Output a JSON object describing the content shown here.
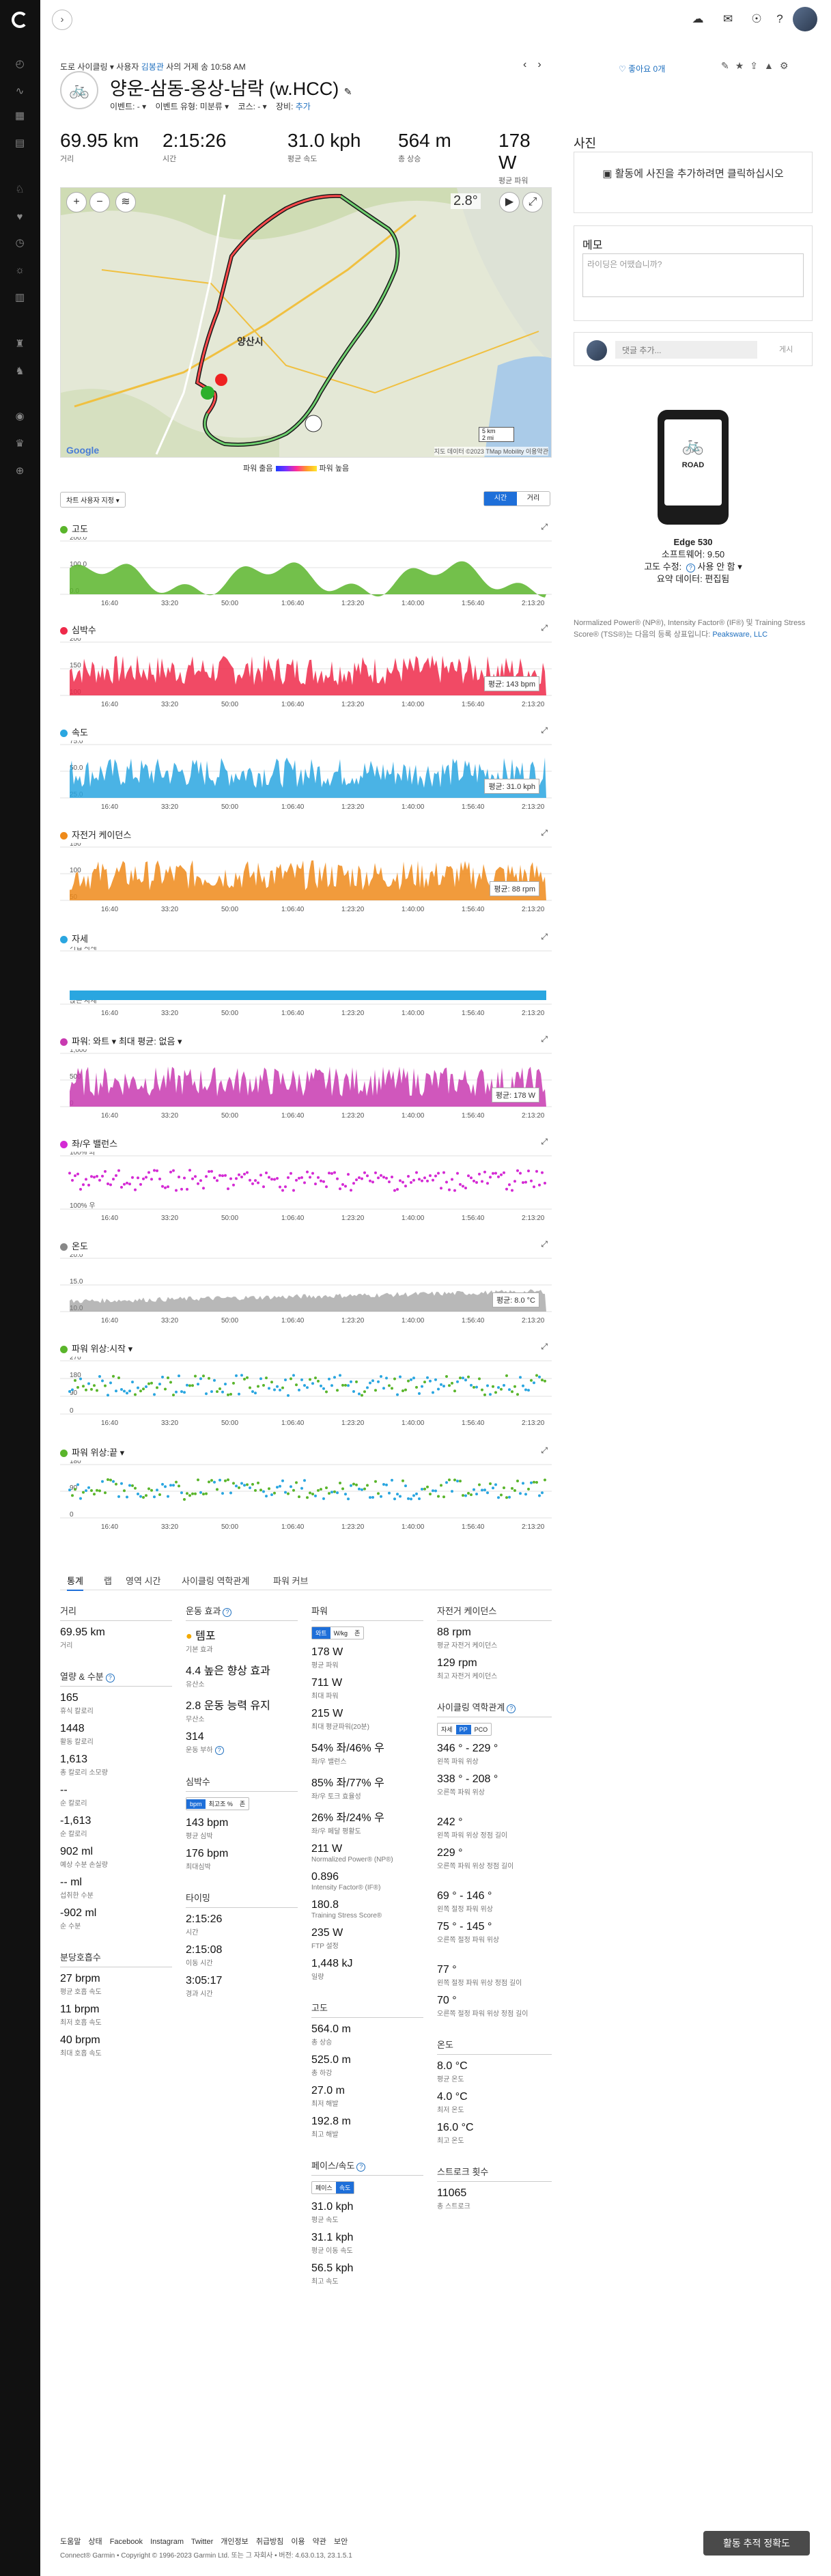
{
  "crumb": {
    "prefix": "도로 사이클링",
    "user_label": "사용자",
    "user": "김봉관",
    "suffix": "사의 거제 송 10:58 AM"
  },
  "title": "양운-삼동-옹상-남락 (w.HCC)",
  "meta": {
    "event": "이벤트: -",
    "event_type": "이벤트 유형: 미분류",
    "course": "코스: -",
    "gear": "장비:",
    "add": "추가"
  },
  "likes": "좋아요 0개",
  "stats": [
    {
      "v": "69.95 km",
      "l": "거리"
    },
    {
      "v": "2:15:26",
      "l": "시간"
    },
    {
      "v": "31.0 kph",
      "l": "평균 속도"
    },
    {
      "v": "564 m",
      "l": "총 상승"
    },
    {
      "v": "178 W",
      "l": "평균 파워"
    }
  ],
  "map": {
    "temp": "2.8°",
    "place": "양산시",
    "attrib": "지도 데이터 ©2023 TMap Mobility  이용약관",
    "scale1": "5 km",
    "scale2": "2 mi",
    "google": "Google"
  },
  "power_legend": {
    "low": "파워 출음",
    "high": "파워 높음"
  },
  "chart_control": "차트 사용자 지정 ▾",
  "toggle": {
    "time": "시간",
    "distance": "거리"
  },
  "x_ticks": [
    "16:40",
    "33:20",
    "50:00",
    "1:06:40",
    "1:23:20",
    "1:40:00",
    "1:56:40",
    "2:13:20"
  ],
  "charts": [
    {
      "title": "고도",
      "color": "#5ab52b",
      "y": [
        "200.0",
        "100.0",
        "0.0"
      ],
      "avg": ""
    },
    {
      "title": "심박수",
      "color": "#ee2a4a",
      "y": [
        "200",
        "150",
        "100"
      ],
      "avg": "평균: 143 bpm"
    },
    {
      "title": "속도",
      "color": "#2aa6e0",
      "y": [
        "75.0",
        "50.0",
        "25.0"
      ],
      "avg": "평균: 31.0 kph"
    },
    {
      "title": "자전거 케이던스",
      "color": "#ee8a1a",
      "y": [
        "150",
        "100",
        "50"
      ],
      "avg": "평균: 88 rpm"
    },
    {
      "title": "자세",
      "color": "#2aa6e0",
      "y": [
        "기립 자세",
        "앉은 자세"
      ],
      "avg": ""
    },
    {
      "title": "파워: 와트 ▾  최대 평균: 없음 ▾",
      "color": "#c83ab0",
      "y": [
        "1,000",
        "500",
        "0"
      ],
      "avg": "평균: 178 W"
    },
    {
      "title": "좌/우 밸런스",
      "color": "#d42ad4",
      "y": [
        "100% 좌",
        "100% 우"
      ],
      "avg": ""
    },
    {
      "title": "온도",
      "color": "#888888",
      "y": [
        "20.0",
        "15.0",
        "10.0"
      ],
      "avg": "평균: 8.0 °C"
    },
    {
      "title": "파워 위상:시작 ▾",
      "color": "#5ab52b",
      "y": [
        "270",
        "180",
        "90",
        "0"
      ],
      "avg": ""
    },
    {
      "title": "파워 위상:끝 ▾",
      "color": "#5ab52b",
      "y": [
        "180",
        "90",
        "0"
      ],
      "avg": ""
    }
  ],
  "tabs": [
    "통계",
    "랩",
    "영역 시간",
    "사이클링 역학관계",
    "파워 커브"
  ],
  "col1": {
    "dist_head": "거리",
    "dist": [
      {
        "v": "69.95 km",
        "l": "거리"
      }
    ],
    "cal_head": "열량 & 수분",
    "cal": [
      {
        "v": "165",
        "l": "휴식 칼로리"
      },
      {
        "v": "1448",
        "l": "활동 칼로리"
      },
      {
        "v": "1,613",
        "l": "총 칼로리 소모량"
      },
      {
        "v": "--",
        "l": "순 칼로리"
      },
      {
        "v": "-1,613",
        "l": "순 칼로리"
      },
      {
        "v": "902 ml",
        "l": "예상 수분 손실량"
      },
      {
        "v": "-- ml",
        "l": "섭취한 수분"
      },
      {
        "v": "-902 ml",
        "l": "순 수분"
      }
    ],
    "resp_head": "분당호흡수",
    "resp": [
      {
        "v": "27 brpm",
        "l": "평균 호흡 속도"
      },
      {
        "v": "11 brpm",
        "l": "최저 호흡 속도"
      },
      {
        "v": "40 brpm",
        "l": "최대 호흡 속도"
      }
    ]
  },
  "col2": {
    "eff_head": "운동 효과",
    "eff": [
      {
        "v": "템포",
        "l": "기본 효과"
      },
      {
        "v": "4.4 높은 향상 효과",
        "l": "유산소"
      },
      {
        "v": "2.8 운동 능력 유지",
        "l": "무산소"
      },
      {
        "v": "314",
        "l": "운동 부하"
      }
    ],
    "hr_head": "심박수",
    "hr_seg": [
      "bpm",
      "최고조 %",
      "존"
    ],
    "hr": [
      {
        "v": "143 bpm",
        "l": "평균 심박"
      },
      {
        "v": "176 bpm",
        "l": "최대심박"
      }
    ],
    "time_head": "타이밍",
    "time": [
      {
        "v": "2:15:26",
        "l": "시간"
      },
      {
        "v": "2:15:08",
        "l": "이동 시간"
      },
      {
        "v": "3:05:17",
        "l": "경과 시간"
      }
    ]
  },
  "col3": {
    "pow_head": "파워",
    "pow_seg": [
      "와트",
      "W/kg",
      "존"
    ],
    "pow": [
      {
        "v": "178 W",
        "l": "평균 파워"
      },
      {
        "v": "711 W",
        "l": "최대 파워"
      },
      {
        "v": "215 W",
        "l": "최대 평균파워(20분)"
      },
      {
        "v": "54% 좌/46% 우",
        "l": "좌/우 밸런스"
      },
      {
        "v": "85% 좌/77% 우",
        "l": "좌/우 토크 효율성"
      },
      {
        "v": "26% 좌/24% 우",
        "l": "좌/우 페달 평활도"
      },
      {
        "v": "211 W",
        "l": "Normalized Power® (NP®)"
      },
      {
        "v": "0.896",
        "l": "Intensity Factor® (IF®)"
      },
      {
        "v": "180.8",
        "l": "Training Stress Score®"
      },
      {
        "v": "235 W",
        "l": "FTP 설정"
      },
      {
        "v": "1,448 kJ",
        "l": "일량"
      }
    ],
    "elev_head": "고도",
    "elev": [
      {
        "v": "564.0 m",
        "l": "총 상승"
      },
      {
        "v": "525.0 m",
        "l": "총 하강"
      },
      {
        "v": "27.0 m",
        "l": "최저 해발"
      },
      {
        "v": "192.8 m",
        "l": "최고 해발"
      }
    ],
    "pace_head": "페이스/속도",
    "pace_seg": [
      "페이스",
      "속도"
    ],
    "pace": [
      {
        "v": "31.0 kph",
        "l": "평균 속도"
      },
      {
        "v": "31.1 kph",
        "l": "평균 이동 속도"
      },
      {
        "v": "56.5 kph",
        "l": "최고 속도"
      }
    ]
  },
  "col4": {
    "cad_head": "자전거 케이던스",
    "cad": [
      {
        "v": "88 rpm",
        "l": "평균 자전거 케이던스"
      },
      {
        "v": "129 rpm",
        "l": "최고 자전거 케이던스"
      }
    ],
    "dyn_head": "사이클링 역학관계",
    "dyn_seg": [
      "자세",
      "PP",
      "PCO"
    ],
    "dyn": [
      {
        "v": "346 ° - 229 °",
        "l": "왼쪽 파워 위상"
      },
      {
        "v": "338 ° - 208 °",
        "l": "오른쪽 파워 위상"
      },
      {
        "v": "242 °",
        "l": "왼쪽 파워 위상 정점 길이"
      },
      {
        "v": "229 °",
        "l": "오른쪽 파워 위상 정점 길이"
      },
      {
        "v": "69 ° - 146 °",
        "l": "왼쪽 절정 파워 위상"
      },
      {
        "v": "75 ° - 145 °",
        "l": "오른쪽 절정 파워 위상"
      },
      {
        "v": "77 °",
        "l": "왼쪽 절정 파워 위상 정점 길이"
      },
      {
        "v": "70 °",
        "l": "오른쪽 절정 파워 위상 정점 길이"
      }
    ],
    "temp_head": "온도",
    "temp": [
      {
        "v": "8.0 °C",
        "l": "평균 온도"
      },
      {
        "v": "4.0 °C",
        "l": "최저 온도"
      },
      {
        "v": "16.0 °C",
        "l": "최고 온도"
      }
    ],
    "stroke_head": "스트로크 횟수",
    "stroke": [
      {
        "v": "11065",
        "l": "총 스트로크"
      }
    ]
  },
  "right": {
    "photo_head": "사진",
    "photo_text": "활동에 사진을 추가하려면 클릭하십시오",
    "memo_head": "메모",
    "memo_ph": "라이딩은 어땠습니까?",
    "comment_ph": "댓글 추가...",
    "post": "게시",
    "device_name": "Edge 530",
    "device_sw": "소프트웨어: 9.50",
    "device_elev": "고도 수정:",
    "device_elev2": "사용 안 함",
    "device_summary": "요약 데이터: 편집됨",
    "screen_top": "ROAD",
    "note": "Normalized Power® (NP®), Intensity Factor® (IF®) 및 Training Stress Score® (TSS®)는 다음의 등록 상표입니다:",
    "note_link": "Peaksware, LLC"
  },
  "footer": {
    "links": "도움말  상태  Facebook  Instagram  Twitter  개인정보 취급방침  이용 약관  보안",
    "copy": "Connect® Garmin • Copyright © 1996-2023 Garmin Ltd. 또는 그 자회사 • 버전: 4.63.0.13, 23.1.5.1",
    "button": "활동 추적 정확도"
  }
}
